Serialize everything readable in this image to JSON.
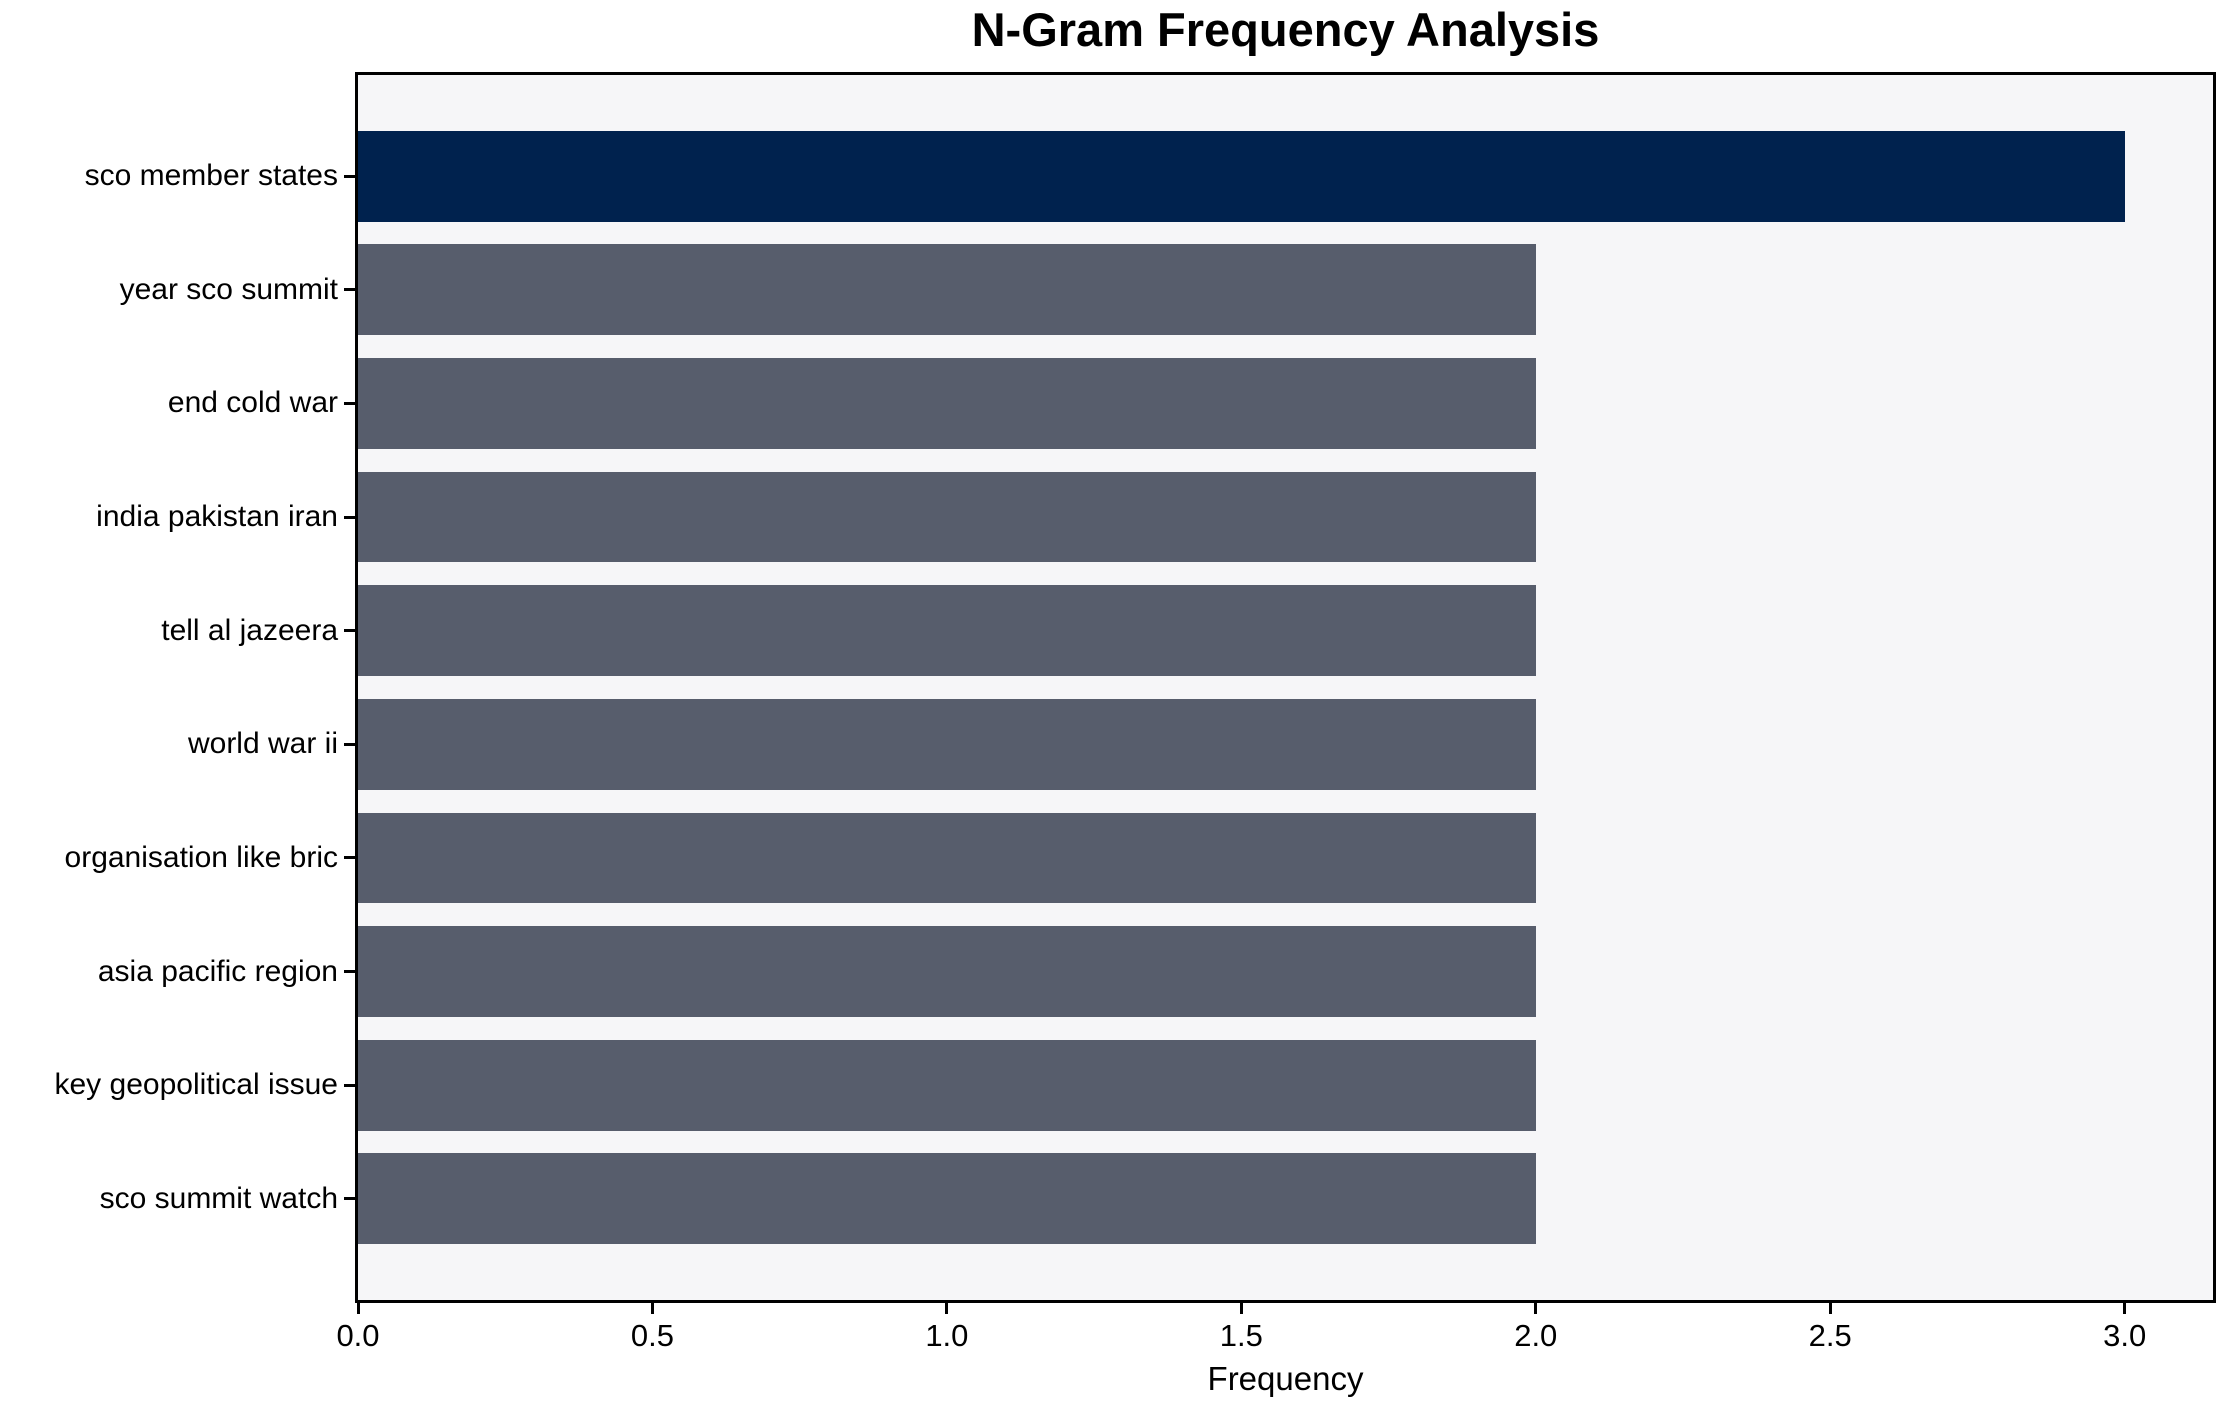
{
  "chart_data": {
    "type": "bar",
    "orientation": "horizontal",
    "title": "N-Gram Frequency Analysis",
    "xlabel": "Frequency",
    "ylabel": "",
    "categories": [
      "sco member states",
      "year sco summit",
      "end cold war",
      "india pakistan iran",
      "tell al jazeera",
      "world war ii",
      "organisation like bric",
      "asia pacific region",
      "key geopolitical issue",
      "sco summit watch"
    ],
    "values": [
      3,
      2,
      2,
      2,
      2,
      2,
      2,
      2,
      2,
      2
    ],
    "bar_colors": [
      "#00224e",
      "#575d6c",
      "#575d6c",
      "#575d6c",
      "#575d6c",
      "#575d6c",
      "#575d6c",
      "#575d6c",
      "#575d6c",
      "#575d6c"
    ],
    "xlim": [
      0,
      3.15
    ],
    "xtick_values": [
      0,
      0.5,
      1,
      1.5,
      2,
      2.5,
      3
    ],
    "xtick_labels": [
      "0.0",
      "0.5",
      "1.0",
      "1.5",
      "2.0",
      "2.5",
      "3.0"
    ],
    "grid": false,
    "legend": null,
    "colors": {
      "highlight": "#00224e",
      "base": "#575d6c",
      "plot_background": "#f6f6f8",
      "figure_background": "#ffffff",
      "spine": "#000000",
      "text": "#000000"
    }
  }
}
